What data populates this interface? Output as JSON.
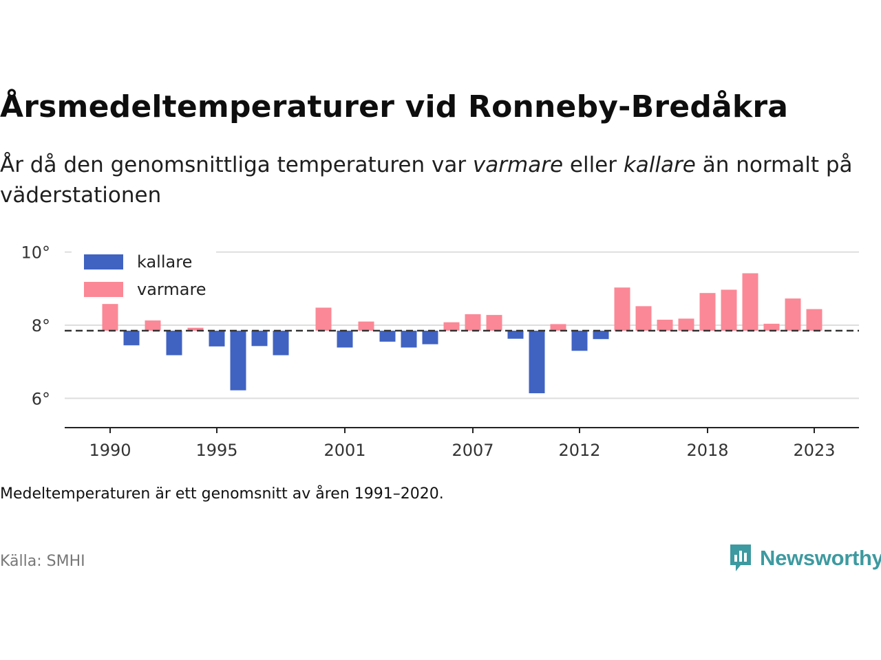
{
  "title": "Årsmedeltemperaturer vid Ronneby-Bredåkra",
  "subtitle": {
    "part1": "År då den genomsnittliga temperaturen var ",
    "warm_word": "varmare",
    "part2": " eller ",
    "cold_word": "kallare",
    "part3": " än normalt på väderstationen"
  },
  "note": "Medeltemperaturen är ett genomsnitt av åren 1991–2020.",
  "source": "Källa: SMHI",
  "brand": "Newsworthy",
  "colors": {
    "cold": "#4063c2",
    "warm": "#fb8896",
    "baseline": "#333333",
    "grid": "#dddddd",
    "brand": "#3d9aa0"
  },
  "chart_data": {
    "type": "bar",
    "baseline": 7.85,
    "ylim": [
      5.2,
      10.5
    ],
    "yticks": [
      6,
      8,
      10
    ],
    "ytick_labels": [
      "6°",
      "8°",
      "10°"
    ],
    "xticks": [
      1990,
      1995,
      2001,
      2007,
      2012,
      2018,
      2023
    ],
    "legend": [
      {
        "key": "cold",
        "label": "kallare"
      },
      {
        "key": "warm",
        "label": "varmare"
      }
    ],
    "legend_position": "top-left",
    "grid": true,
    "years": [
      1990,
      1991,
      1992,
      1993,
      1994,
      1995,
      1996,
      1997,
      1998,
      1999,
      2000,
      2001,
      2002,
      2003,
      2004,
      2005,
      2006,
      2007,
      2008,
      2009,
      2010,
      2011,
      2012,
      2013,
      2014,
      2015,
      2016,
      2017,
      2018,
      2019,
      2020,
      2021,
      2022,
      2023
    ],
    "values": [
      8.58,
      7.45,
      8.13,
      7.18,
      7.93,
      7.42,
      6.22,
      7.43,
      7.18,
      null,
      8.48,
      7.39,
      8.1,
      7.55,
      7.39,
      7.48,
      8.08,
      8.3,
      8.28,
      7.63,
      6.14,
      8.03,
      7.3,
      7.62,
      9.03,
      8.52,
      8.15,
      8.18,
      8.88,
      8.97,
      9.42,
      8.04,
      8.73,
      8.44
    ]
  }
}
